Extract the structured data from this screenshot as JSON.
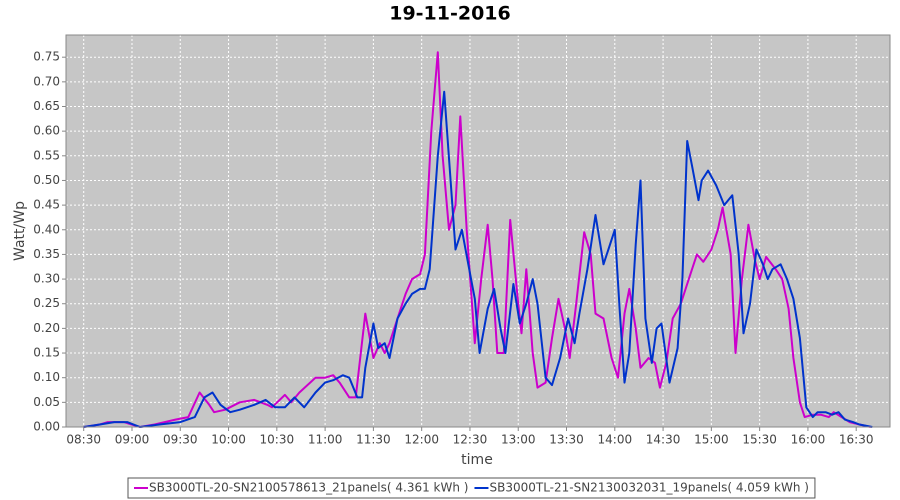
{
  "chart_data": {
    "type": "line",
    "title": "19-11-2016",
    "x_label": "time",
    "y_label": "Watt/Wp",
    "xlim": [
      "08:19",
      "16:51"
    ],
    "xticks": [
      "08:30",
      "09:00",
      "09:30",
      "10:00",
      "10:30",
      "11:00",
      "11:30",
      "12:00",
      "12:30",
      "13:00",
      "13:30",
      "14:00",
      "14:30",
      "15:00",
      "15:30",
      "16:00",
      "16:30"
    ],
    "ylim": [
      0,
      0.795
    ],
    "yticks": [
      {
        "value": 0,
        "label": "0.00"
      },
      0.05,
      {
        "value": 0.1,
        "label": "0.10"
      },
      0.15,
      {
        "value": 0.2,
        "label": "0.20"
      },
      0.25,
      {
        "value": 0.3,
        "label": "0.30"
      },
      0.35,
      {
        "value": 0.4,
        "label": "0.40"
      },
      0.45,
      {
        "value": 0.5,
        "label": "0.50"
      },
      0.55,
      {
        "value": 0.6,
        "label": "0.60"
      },
      0.65,
      {
        "value": 0.7,
        "label": "0.70"
      },
      0.75
    ],
    "grid": true,
    "series": [
      {
        "name": "SB3000TL-20-SN2100578613_21panels( 4.361 kWh )",
        "color": "#cc00cc",
        "x": [
          "08:30",
          "08:40",
          "08:45",
          "08:55",
          "09:05",
          "09:14",
          "09:27",
          "09:35",
          "09:42",
          "09:48",
          "09:51",
          "09:58",
          "10:07",
          "10:16",
          "10:24",
          "10:27",
          "10:35",
          "10:39",
          "10:44",
          "10:54",
          "11:00",
          "11:05",
          "11:09",
          "11:15",
          "11:19",
          "11:25",
          "11:30",
          "11:34",
          "11:37",
          "11:40",
          "11:45",
          "11:50",
          "11:54",
          "11:59",
          "12:02",
          "12:06",
          "12:10",
          "12:13",
          "12:17",
          "12:21",
          "12:24",
          "12:28",
          "12:33",
          "12:37",
          "12:41",
          "12:44",
          "12:47",
          "12:51",
          "12:55",
          "13:00",
          "13:02",
          "13:05",
          "13:09",
          "13:12",
          "13:17",
          "13:21",
          "13:25",
          "13:29",
          "13:32",
          "13:36",
          "13:41",
          "13:45",
          "13:48",
          "13:53",
          "13:58",
          "14:02",
          "14:06",
          "14:09",
          "14:13",
          "14:16",
          "14:21",
          "14:25",
          "14:28",
          "14:32",
          "14:36",
          "14:41",
          "14:46",
          "14:51",
          "14:55",
          "15:00",
          "15:04",
          "15:07",
          "15:12",
          "15:15",
          "15:19",
          "15:23",
          "15:27",
          "15:30",
          "15:34",
          "15:40",
          "15:44",
          "15:48",
          "15:51",
          "15:55",
          "15:58",
          "16:03",
          "16:08",
          "16:13",
          "16:16",
          "16:21",
          "16:26",
          "16:32",
          "16:39"
        ],
        "values": [
          0,
          0.005,
          0.01,
          0.01,
          0,
          0.005,
          0.015,
          0.02,
          0.07,
          0.045,
          0.03,
          0.035,
          0.05,
          0.055,
          0.045,
          0.04,
          0.065,
          0.05,
          0.07,
          0.1,
          0.1,
          0.105,
          0.09,
          0.06,
          0.06,
          0.23,
          0.14,
          0.17,
          0.15,
          0.17,
          0.22,
          0.27,
          0.3,
          0.31,
          0.35,
          0.6,
          0.76,
          0.55,
          0.4,
          0.45,
          0.63,
          0.4,
          0.17,
          0.3,
          0.41,
          0.3,
          0.15,
          0.15,
          0.42,
          0.25,
          0.19,
          0.32,
          0.15,
          0.08,
          0.09,
          0.18,
          0.26,
          0.2,
          0.14,
          0.25,
          0.395,
          0.35,
          0.23,
          0.22,
          0.14,
          0.1,
          0.23,
          0.28,
          0.2,
          0.12,
          0.14,
          0.13,
          0.08,
          0.13,
          0.22,
          0.25,
          0.3,
          0.35,
          0.335,
          0.36,
          0.4,
          0.445,
          0.35,
          0.15,
          0.3,
          0.41,
          0.34,
          0.3,
          0.345,
          0.32,
          0.3,
          0.24,
          0.14,
          0.05,
          0.02,
          0.025,
          0.025,
          0.02,
          0.03,
          0.02,
          0.01,
          0.005,
          0
        ]
      },
      {
        "name": "SB3000TL-21-SN2130032031_19panels( 4.059 kWh )",
        "color": "#0033cc",
        "x": [
          "08:30",
          "08:40",
          "08:49",
          "08:57",
          "09:05",
          "09:17",
          "09:30",
          "09:39",
          "09:45",
          "09:50",
          "09:55",
          "10:01",
          "10:07",
          "10:16",
          "10:23",
          "10:29",
          "10:35",
          "10:41",
          "10:47",
          "10:54",
          "11:00",
          "11:05",
          "11:11",
          "11:15",
          "11:20",
          "11:23",
          "11:25",
          "11:30",
          "11:33",
          "11:37",
          "11:40",
          "11:45",
          "11:50",
          "11:54",
          "11:59",
          "12:02",
          "12:05",
          "12:10",
          "12:14",
          "12:18",
          "12:21",
          "12:25",
          "12:29",
          "12:33",
          "12:36",
          "12:41",
          "12:45",
          "12:49",
          "12:52",
          "12:57",
          "13:01",
          "13:05",
          "13:09",
          "13:12",
          "13:17",
          "13:21",
          "13:26",
          "13:31",
          "13:35",
          "13:38",
          "13:43",
          "13:48",
          "13:53",
          "13:56",
          "14:00",
          "14:03",
          "14:06",
          "14:09",
          "14:13",
          "14:16",
          "14:19",
          "14:23",
          "14:26",
          "14:29",
          "14:34",
          "14:39",
          "14:42",
          "14:45",
          "14:48",
          "14:52",
          "14:54",
          "14:58",
          "15:03",
          "15:08",
          "15:13",
          "15:17",
          "15:20",
          "15:24",
          "15:28",
          "15:32",
          "15:35",
          "15:38",
          "15:43",
          "15:47",
          "15:51",
          "15:55",
          "15:59",
          "16:03",
          "16:06",
          "16:11",
          "16:15",
          "16:19",
          "16:23",
          "16:28",
          "16:32",
          "16:40"
        ],
        "values": [
          0,
          0.005,
          0.01,
          0.01,
          0,
          0.005,
          0.01,
          0.02,
          0.06,
          0.07,
          0.045,
          0.03,
          0.035,
          0.045,
          0.055,
          0.04,
          0.04,
          0.06,
          0.04,
          0.07,
          0.09,
          0.095,
          0.105,
          0.1,
          0.06,
          0.06,
          0.12,
          0.21,
          0.16,
          0.17,
          0.14,
          0.22,
          0.25,
          0.27,
          0.28,
          0.28,
          0.32,
          0.55,
          0.68,
          0.5,
          0.36,
          0.4,
          0.33,
          0.26,
          0.15,
          0.24,
          0.28,
          0.2,
          0.15,
          0.29,
          0.21,
          0.25,
          0.3,
          0.25,
          0.1,
          0.085,
          0.14,
          0.22,
          0.17,
          0.23,
          0.32,
          0.43,
          0.33,
          0.36,
          0.4,
          0.24,
          0.09,
          0.15,
          0.37,
          0.5,
          0.22,
          0.13,
          0.2,
          0.21,
          0.09,
          0.16,
          0.3,
          0.58,
          0.53,
          0.46,
          0.5,
          0.52,
          0.49,
          0.45,
          0.47,
          0.35,
          0.19,
          0.25,
          0.36,
          0.33,
          0.3,
          0.32,
          0.33,
          0.3,
          0.26,
          0.18,
          0.04,
          0.02,
          0.03,
          0.03,
          0.025,
          0.03,
          0.015,
          0.01,
          0.005,
          0
        ]
      }
    ]
  }
}
